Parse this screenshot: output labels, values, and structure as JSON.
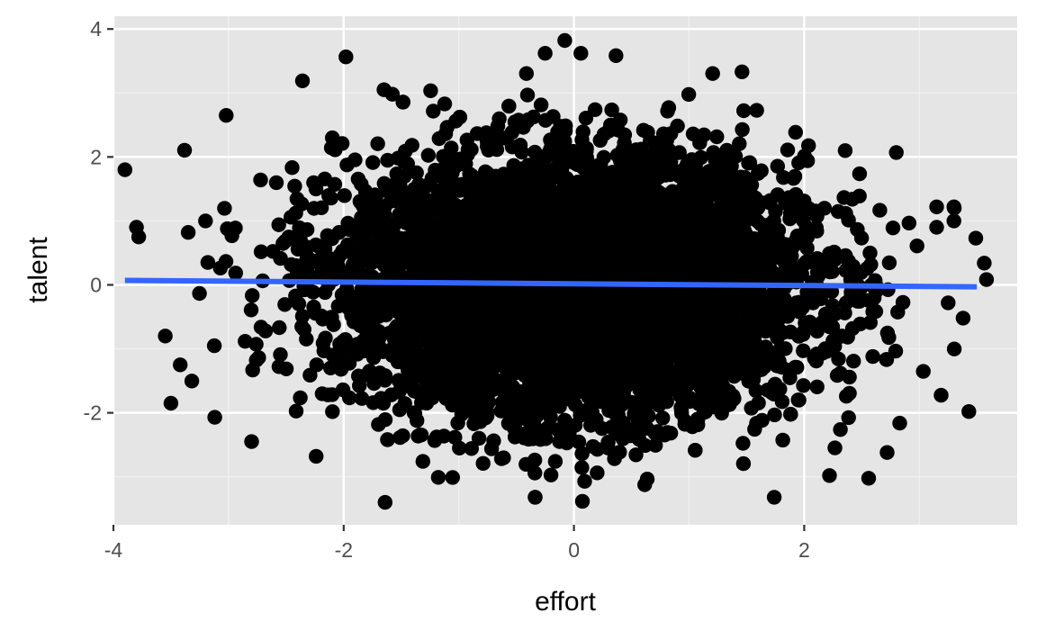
{
  "chart_data": {
    "type": "scatter",
    "title": "",
    "xlabel": "effort",
    "ylabel": "talent",
    "xlim": [
      -4.0,
      3.85
    ],
    "ylim": [
      -3.75,
      4.2
    ],
    "x_ticks": [
      -4,
      -2,
      0,
      2
    ],
    "y_ticks": [
      -2,
      0,
      2,
      4
    ],
    "x_tick_labels": [
      "-4",
      "-2",
      "0",
      "2"
    ],
    "y_tick_labels": [
      "-2",
      "0",
      "2",
      "4"
    ],
    "grid": true,
    "legend": "none",
    "colors": {
      "panel_background": "#e5e5e5",
      "grid_major": "#ffffff",
      "grid_minor": "#f2f2f2",
      "points": "#000000",
      "fit_line": "#3366ff"
    },
    "trend_line": {
      "method": "linear fit",
      "x": [
        -3.9,
        3.5
      ],
      "y": [
        0.07,
        -0.03
      ]
    },
    "points": {
      "n_dense": 6000,
      "distribution": "roughly independent standard normal in effort and talent",
      "notable_outliers": [
        {
          "x": -3.9,
          "y": 1.8
        },
        {
          "x": -3.8,
          "y": 0.9
        },
        {
          "x": -3.78,
          "y": 0.75
        },
        {
          "x": -3.55,
          "y": -0.8
        },
        {
          "x": -3.5,
          "y": -1.85
        },
        {
          "x": -3.42,
          "y": -1.25
        },
        {
          "x": -3.35,
          "y": 0.82
        },
        {
          "x": -3.2,
          "y": 1.0
        },
        {
          "x": -3.18,
          "y": 0.35
        },
        {
          "x": -3.12,
          "y": -2.07
        },
        {
          "x": -3.02,
          "y": 2.65
        },
        {
          "x": -2.8,
          "y": -2.45
        },
        {
          "x": -1.64,
          "y": -3.4
        },
        {
          "x": -1.65,
          "y": 3.05
        },
        {
          "x": -0.08,
          "y": 3.82
        },
        {
          "x": 0.06,
          "y": 3.62
        },
        {
          "x": -0.25,
          "y": 3.62
        },
        {
          "x": 1.46,
          "y": 3.33
        },
        {
          "x": 1.74,
          "y": -3.32
        },
        {
          "x": 2.22,
          "y": -2.98
        },
        {
          "x": 2.72,
          "y": -2.62
        },
        {
          "x": 2.8,
          "y": 2.07
        },
        {
          "x": 3.15,
          "y": 1.22
        },
        {
          "x": 3.3,
          "y": 1.22
        },
        {
          "x": 3.3,
          "y": 1.0
        },
        {
          "x": 3.15,
          "y": 0.9
        },
        {
          "x": 3.49,
          "y": 0.73
        },
        {
          "x": 3.25,
          "y": -0.28
        },
        {
          "x": 3.38,
          "y": -0.52
        },
        {
          "x": 3.43,
          "y": -1.98
        }
      ]
    }
  }
}
